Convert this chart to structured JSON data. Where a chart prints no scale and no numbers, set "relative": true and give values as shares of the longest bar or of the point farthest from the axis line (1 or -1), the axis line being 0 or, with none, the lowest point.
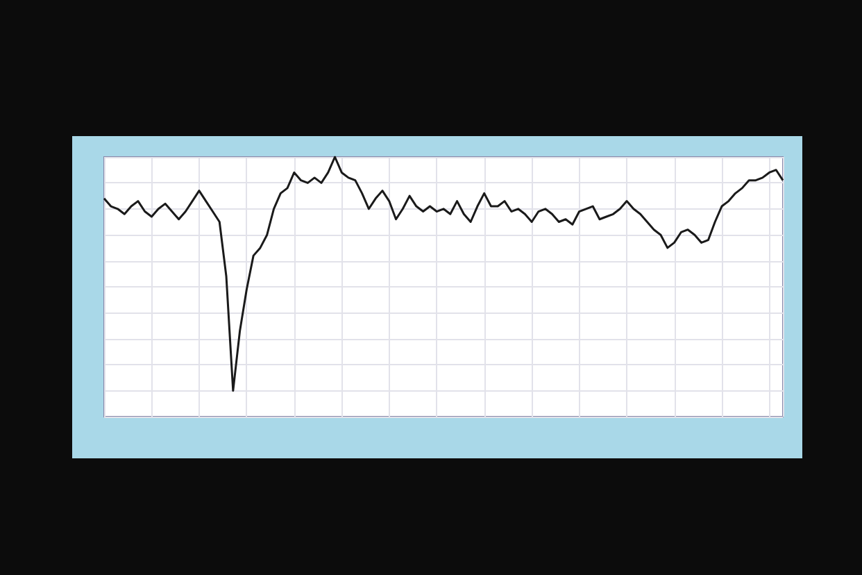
{
  "chart_data": {
    "type": "line",
    "relative": true,
    "grid": true,
    "line_style": "solid",
    "categories": [
      null,
      null,
      null,
      null,
      null,
      null,
      null,
      null,
      null,
      null,
      null,
      null,
      null,
      null,
      null,
      null,
      null,
      null,
      null,
      null,
      null,
      null,
      null,
      null,
      null,
      null,
      null,
      null,
      null,
      null,
      null,
      null,
      null,
      null,
      null,
      null,
      null,
      null,
      null,
      null,
      null,
      null,
      null,
      null,
      null,
      null,
      null,
      null,
      null,
      null,
      null,
      null,
      null,
      null,
      null,
      null,
      null,
      null,
      null,
      null,
      null,
      null,
      null,
      null,
      null,
      null,
      null,
      null,
      null,
      null,
      null,
      null,
      null,
      null,
      null,
      null,
      null,
      null,
      null,
      null,
      null,
      null,
      null,
      null,
      null,
      null,
      null,
      null,
      null,
      null,
      null,
      null,
      null,
      null,
      null,
      null,
      null,
      null,
      null,
      null,
      null
    ],
    "series": [
      {
        "color": "#1a1a1a",
        "values": [
          0.84,
          0.81,
          0.8,
          0.78,
          0.81,
          0.83,
          0.79,
          0.77,
          0.8,
          0.82,
          0.79,
          0.76,
          0.79,
          0.83,
          0.87,
          0.83,
          0.79,
          0.75,
          0.54,
          0.1,
          0.33,
          0.49,
          0.62,
          0.65,
          0.7,
          0.8,
          0.86,
          0.88,
          0.94,
          0.91,
          0.9,
          0.92,
          0.9,
          0.94,
          1.0,
          0.94,
          0.92,
          0.91,
          0.86,
          0.8,
          0.84,
          0.87,
          0.83,
          0.76,
          0.8,
          0.85,
          0.81,
          0.79,
          0.81,
          0.79,
          0.8,
          0.78,
          0.83,
          0.78,
          0.75,
          0.81,
          0.86,
          0.81,
          0.81,
          0.83,
          0.79,
          0.8,
          0.78,
          0.75,
          0.79,
          0.8,
          0.78,
          0.75,
          0.76,
          0.74,
          0.79,
          0.8,
          0.81,
          0.76,
          0.77,
          0.78,
          0.8,
          0.83,
          0.8,
          0.78,
          0.75,
          0.72,
          0.7,
          0.65,
          0.67,
          0.71,
          0.72,
          0.7,
          0.67,
          0.68,
          0.75,
          0.81,
          0.83,
          0.86,
          0.88,
          0.91,
          0.91,
          0.92,
          0.94,
          0.95,
          0.91
        ]
      }
    ]
  }
}
